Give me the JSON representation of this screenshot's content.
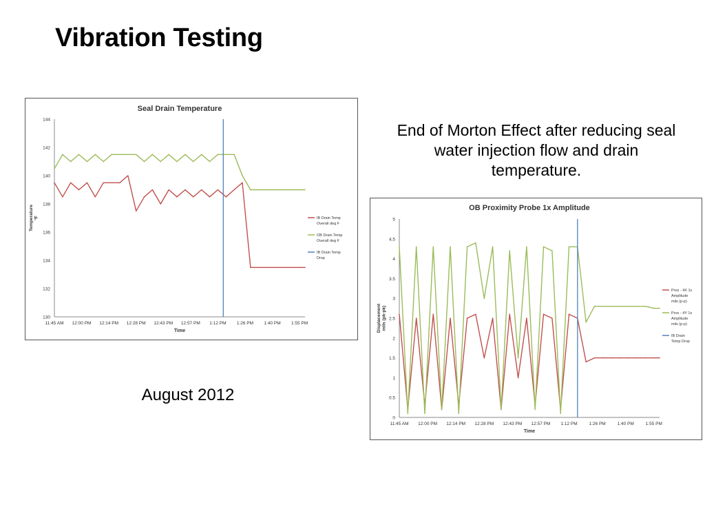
{
  "slide": {
    "title": "Vibration Testing",
    "note": "End of Morton Effect after reducing seal water injection flow and drain temperature.",
    "date": "August 2012"
  },
  "chart_data": [
    {
      "type": "line",
      "title": "Seal Drain Temperature",
      "xlabel": "Time",
      "ylabel": "Temperature °F",
      "x_ticks": [
        "11:45 AM",
        "12:00 PM",
        "12:14 PM",
        "12:28 PM",
        "12:43 PM",
        "12:57 PM",
        "1:12 PM",
        "1:26 PM",
        "1:40 PM",
        "1:55 PM"
      ],
      "x_range": [
        0,
        9.2
      ],
      "ylim": [
        130,
        144
      ],
      "y_ticks": [
        130,
        132,
        134,
        136,
        138,
        140,
        142,
        144
      ],
      "grid": false,
      "legend": "right",
      "series": [
        {
          "name": "IB Drain Temp Overall deg F",
          "color": "#c0504d",
          "x": [
            0,
            0.3,
            0.6,
            0.9,
            1.2,
            1.5,
            1.8,
            2.1,
            2.4,
            2.7,
            3.0,
            3.3,
            3.6,
            3.9,
            4.2,
            4.5,
            4.8,
            5.1,
            5.4,
            5.7,
            6.0,
            6.3,
            6.6,
            6.9,
            7.2,
            7.5,
            7.8,
            8.1,
            8.4,
            8.7,
            9.0,
            9.2
          ],
          "values": [
            139.5,
            138.5,
            139.5,
            139,
            139.5,
            138.5,
            139.5,
            139.5,
            139.5,
            140,
            137.5,
            138.5,
            139,
            138,
            139,
            138.5,
            139,
            138.5,
            139,
            138.5,
            139,
            138.5,
            139,
            139.5,
            133.5,
            133.5,
            133.5,
            133.5,
            133.5,
            133.5,
            133.5,
            133.5
          ]
        },
        {
          "name": "OB Drain Temp Overall deg F",
          "color": "#9bbb59",
          "x": [
            0,
            0.3,
            0.6,
            0.9,
            1.2,
            1.5,
            1.8,
            2.1,
            2.4,
            2.7,
            3.0,
            3.3,
            3.6,
            3.9,
            4.2,
            4.5,
            4.8,
            5.1,
            5.4,
            5.7,
            6.0,
            6.3,
            6.6,
            6.9,
            7.2,
            7.5,
            7.8,
            8.1,
            8.4,
            8.7,
            9.0,
            9.2
          ],
          "values": [
            140.5,
            141.5,
            141,
            141.5,
            141,
            141.5,
            141,
            141.5,
            141.5,
            141.5,
            141.5,
            141,
            141.5,
            141,
            141.5,
            141,
            141.5,
            141,
            141.5,
            141,
            141.5,
            141.5,
            141.5,
            140,
            139,
            139,
            139,
            139,
            139,
            139,
            139,
            139
          ]
        }
      ],
      "vline": {
        "name": "IB Drain Temp Drop",
        "x": 6.2,
        "color": "#4f81bd"
      }
    },
    {
      "type": "line",
      "title": "OB Proximity Probe 1x Amplitude",
      "xlabel": "Time",
      "ylabel": "Displacement mils (pk-pk)",
      "x_ticks": [
        "11:45 AM",
        "12:00 PM",
        "12:14 PM",
        "12:28 PM",
        "12:43 PM",
        "12:57 PM",
        "1:12 PM",
        "1:26 PM",
        "1:40 PM",
        "1:55 PM"
      ],
      "x_range": [
        0,
        9.2
      ],
      "ylim": [
        0,
        5
      ],
      "y_ticks": [
        0,
        0.5,
        1,
        1.5,
        2,
        2.5,
        3,
        3.5,
        4,
        4.5,
        5
      ],
      "grid": false,
      "legend": "right",
      "series": [
        {
          "name": "Prox - 4X 1x Amplitude mils (p-p)",
          "color": "#c0504d",
          "x": [
            0,
            0.3,
            0.6,
            0.9,
            1.2,
            1.5,
            1.8,
            2.1,
            2.4,
            2.7,
            3.0,
            3.3,
            3.6,
            3.9,
            4.2,
            4.5,
            4.8,
            5.1,
            5.4,
            5.7,
            6.0,
            6.3,
            6.6,
            6.9,
            7.2,
            7.5,
            7.8,
            8.1,
            8.4,
            8.7,
            9.0,
            9.2
          ],
          "values": [
            2.6,
            0.2,
            2.5,
            0.3,
            2.6,
            0.2,
            2.5,
            0.3,
            2.5,
            2.6,
            1.5,
            2.5,
            0.2,
            2.6,
            1.0,
            2.5,
            0.3,
            2.6,
            2.5,
            0.2,
            2.6,
            2.5,
            1.4,
            1.5,
            1.5,
            1.5,
            1.5,
            1.5,
            1.5,
            1.5,
            1.5,
            1.5
          ]
        },
        {
          "name": "Prox - 4Y 1x Amplitude mils (p-p)",
          "color": "#9bbb59",
          "x": [
            0,
            0.3,
            0.6,
            0.9,
            1.2,
            1.5,
            1.8,
            2.1,
            2.4,
            2.7,
            3.0,
            3.3,
            3.6,
            3.9,
            4.2,
            4.5,
            4.8,
            5.1,
            5.4,
            5.7,
            6.0,
            6.3,
            6.6,
            6.9,
            7.2,
            7.5,
            7.8,
            8.1,
            8.4,
            8.7,
            9.0,
            9.2
          ],
          "values": [
            4.3,
            0.1,
            4.3,
            0.1,
            4.3,
            0.2,
            4.3,
            0.1,
            4.3,
            4.4,
            3.0,
            4.3,
            0.2,
            4.2,
            1.5,
            4.3,
            0.2,
            4.3,
            4.2,
            0.1,
            4.3,
            4.3,
            2.4,
            2.8,
            2.8,
            2.8,
            2.8,
            2.8,
            2.8,
            2.8,
            2.75,
            2.75
          ]
        }
      ],
      "vline": {
        "name": "IB Drain Temp Drop",
        "x": 6.3,
        "color": "#4f81bd"
      }
    }
  ]
}
